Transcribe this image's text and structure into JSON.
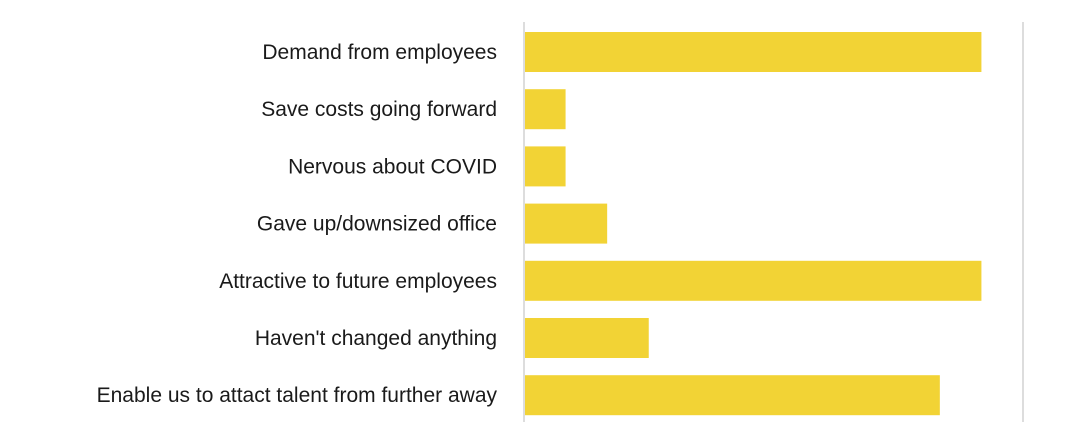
{
  "chart_data": {
    "type": "bar",
    "orientation": "horizontal",
    "categories": [
      "Demand from employees",
      "Save costs going forward",
      "Nervous about COVID",
      "Gave up/downsized office",
      "Attractive to future employees",
      "Haven't changed anything",
      "Enable us to attact talent from further away"
    ],
    "values": [
      11,
      1,
      1,
      2,
      11,
      3,
      10
    ],
    "xlim": [
      0,
      12
    ],
    "title": "",
    "xlabel": "",
    "ylabel": "",
    "grid": false,
    "legend": "none",
    "colors": {
      "bar": "#F2D335",
      "axis_line": "#BBBBBB",
      "label_text": "#1A1A1A"
    }
  }
}
